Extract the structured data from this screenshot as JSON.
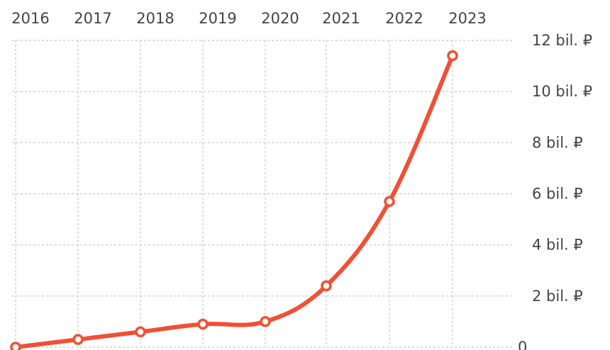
{
  "chart_data": {
    "type": "line",
    "x": [
      "2016",
      "2017",
      "2018",
      "2019",
      "2020",
      "2021",
      "2022",
      "2023"
    ],
    "series": [
      {
        "values": [
          0.0,
          0.3,
          0.6,
          0.9,
          1.0,
          2.4,
          5.7,
          11.4
        ]
      }
    ],
    "y_ticks": [
      {
        "value": 12,
        "label": "12 bil. ₽"
      },
      {
        "value": 10,
        "label": "10 bil. ₽"
      },
      {
        "value": 8,
        "label": "8 bil. ₽"
      },
      {
        "value": 6,
        "label": "6 bil. ₽"
      },
      {
        "value": 4,
        "label": "4 bil. ₽"
      },
      {
        "value": 2,
        "label": "2 bil. ₽"
      },
      {
        "value": 0,
        "label": "0"
      }
    ],
    "ylim": [
      0,
      12
    ],
    "x_axis_position": "top",
    "y_axis_position": "right",
    "grid": true,
    "line_color": "#f24f34"
  }
}
